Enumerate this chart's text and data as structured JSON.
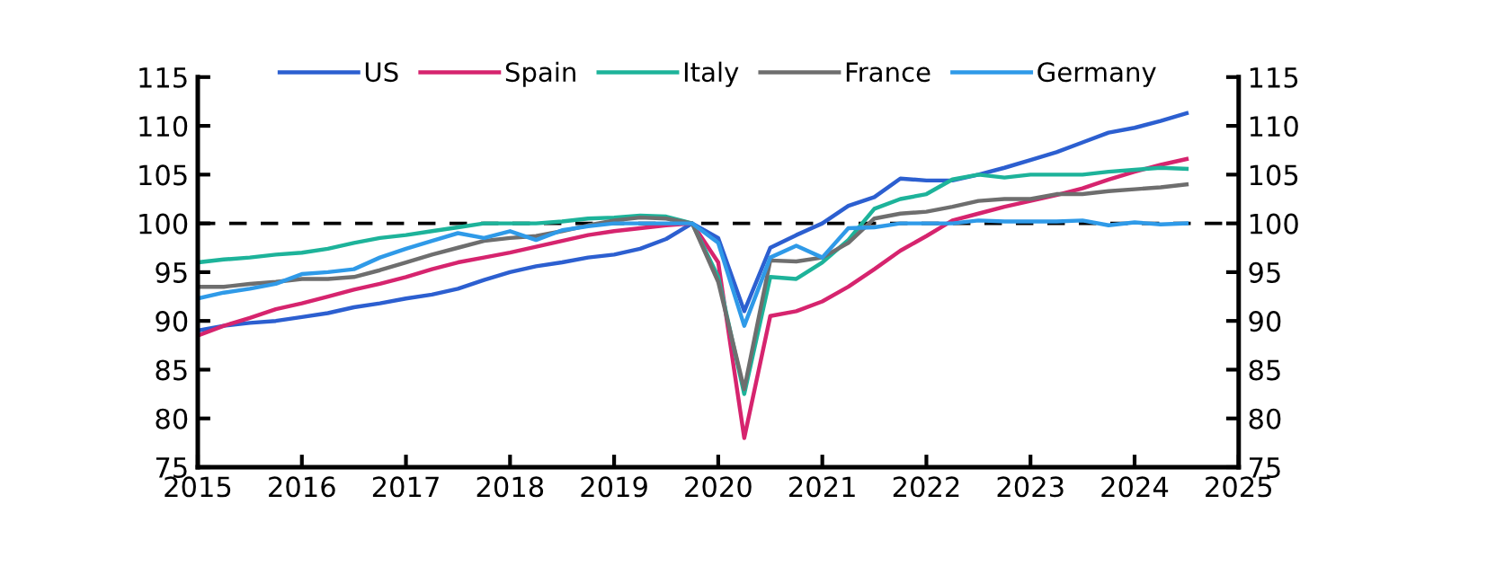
{
  "chart_data": {
    "type": "line",
    "x": [
      2015.0,
      2015.25,
      2015.5,
      2015.75,
      2016.0,
      2016.25,
      2016.5,
      2016.75,
      2017.0,
      2017.25,
      2017.5,
      2017.75,
      2018.0,
      2018.25,
      2018.5,
      2018.75,
      2019.0,
      2019.25,
      2019.5,
      2019.75,
      2020.0,
      2020.25,
      2020.5,
      2020.75,
      2021.0,
      2021.25,
      2021.5,
      2021.75,
      2022.0,
      2022.25,
      2022.5,
      2022.75,
      2023.0,
      2023.25,
      2023.5,
      2023.75,
      2024.0,
      2024.25,
      2024.5
    ],
    "series": [
      {
        "name": "US",
        "color": "#2c5fd0",
        "values": [
          89.0,
          89.5,
          89.8,
          90.0,
          90.4,
          90.8,
          91.4,
          91.8,
          92.3,
          92.7,
          93.3,
          94.2,
          95.0,
          95.6,
          96.0,
          96.5,
          96.8,
          97.4,
          98.4,
          100.0,
          98.5,
          91.0,
          97.5,
          98.8,
          100.0,
          101.8,
          102.7,
          104.6,
          104.4,
          104.4,
          105.0,
          105.7,
          106.5,
          107.3,
          108.3,
          109.3,
          109.8,
          110.5,
          111.3
        ]
      },
      {
        "name": "Spain",
        "color": "#d6246e",
        "values": [
          88.5,
          89.5,
          90.3,
          91.2,
          91.8,
          92.5,
          93.2,
          93.8,
          94.5,
          95.3,
          96.0,
          96.5,
          97.0,
          97.6,
          98.2,
          98.8,
          99.2,
          99.5,
          99.8,
          100.0,
          96.0,
          78.0,
          90.5,
          91.0,
          92.0,
          93.5,
          95.3,
          97.2,
          98.7,
          100.3,
          101.0,
          101.7,
          102.3,
          102.9,
          103.6,
          104.5,
          105.3,
          106.0,
          106.6
        ]
      },
      {
        "name": "Italy",
        "color": "#1db39a",
        "values": [
          96.0,
          96.3,
          96.5,
          96.8,
          97.0,
          97.4,
          98.0,
          98.5,
          98.8,
          99.2,
          99.6,
          100.0,
          100.0,
          100.0,
          100.2,
          100.5,
          100.6,
          100.8,
          100.7,
          100.0,
          94.5,
          82.5,
          94.5,
          94.3,
          96.0,
          98.3,
          101.5,
          102.5,
          103.0,
          104.5,
          105.0,
          104.7,
          105.0,
          105.0,
          105.0,
          105.3,
          105.5,
          105.7,
          105.6
        ]
      },
      {
        "name": "France",
        "color": "#6e6e6e",
        "values": [
          93.5,
          93.5,
          93.8,
          94.0,
          94.3,
          94.3,
          94.5,
          95.2,
          96.0,
          96.8,
          97.5,
          98.2,
          98.5,
          98.7,
          99.2,
          99.8,
          100.3,
          100.6,
          100.5,
          100.0,
          94.0,
          83.0,
          96.2,
          96.1,
          96.5,
          98.0,
          100.5,
          101.0,
          101.2,
          101.7,
          102.3,
          102.5,
          102.5,
          103.0,
          103.0,
          103.3,
          103.5,
          103.7,
          104.0
        ]
      },
      {
        "name": "Germany",
        "color": "#2f9ae8",
        "values": [
          92.3,
          92.9,
          93.3,
          93.8,
          94.8,
          95.0,
          95.3,
          96.5,
          97.4,
          98.2,
          99.0,
          98.5,
          99.2,
          98.3,
          99.3,
          99.7,
          100.0,
          100.0,
          100.0,
          100.0,
          98.0,
          89.5,
          96.5,
          97.7,
          96.5,
          99.5,
          99.6,
          100.0,
          100.0,
          100.0,
          100.3,
          100.2,
          100.2,
          100.2,
          100.3,
          99.8,
          100.1,
          99.9,
          100.0
        ]
      }
    ],
    "xlim": [
      2015,
      2025
    ],
    "xticks": [
      2015,
      2016,
      2017,
      2018,
      2019,
      2020,
      2021,
      2022,
      2023,
      2024,
      2025
    ],
    "ylim": [
      75,
      115
    ],
    "yticks": [
      75,
      80,
      85,
      90,
      95,
      100,
      105,
      110,
      115
    ],
    "y2lim": [
      75,
      115
    ],
    "y2ticks": [
      75,
      80,
      85,
      90,
      95,
      100,
      105,
      110,
      115
    ],
    "ref_lines": [
      {
        "axis": "y",
        "value": 100,
        "color": "#000000",
        "line_style": "dashed"
      }
    ],
    "legend": "top",
    "grid": false,
    "marker": "none",
    "line_style": "solid"
  }
}
